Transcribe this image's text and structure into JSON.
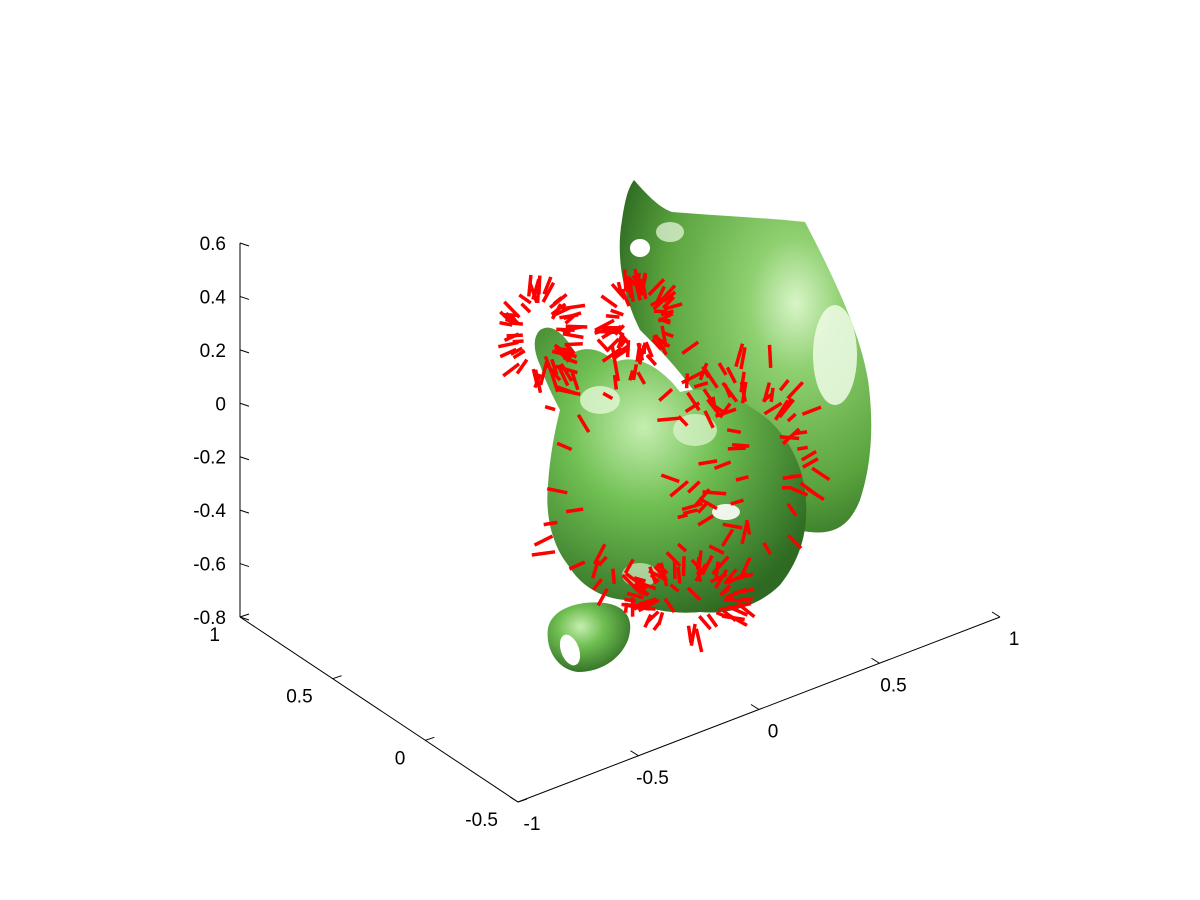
{
  "chart_data": {
    "type": "scatter",
    "projection": "3d",
    "axes": {
      "x": {
        "ticks": [
          "-1",
          "-0.5",
          "0",
          "0.5",
          "1"
        ],
        "range": [
          -1,
          1
        ]
      },
      "y": {
        "ticks": [
          "-0.5",
          "0",
          "0.5",
          "1"
        ],
        "range": [
          -0.5,
          1
        ]
      },
      "z": {
        "ticks": [
          "-0.8",
          "-0.6",
          "-0.4",
          "-0.2",
          "0",
          "0.2",
          "0.4",
          "0.6"
        ],
        "range": [
          -0.8,
          0.6
        ]
      }
    },
    "grid": false,
    "series": [
      {
        "kind": "isosurface",
        "color": "#6ab04c"
      },
      {
        "kind": "quiver",
        "color": "#ff0000"
      }
    ],
    "colors": {
      "surface": "#6ab04c",
      "surface_highlight": "#c8f0b0",
      "surface_shadow": "#2f6b23",
      "vectors": "#ff0000"
    }
  }
}
